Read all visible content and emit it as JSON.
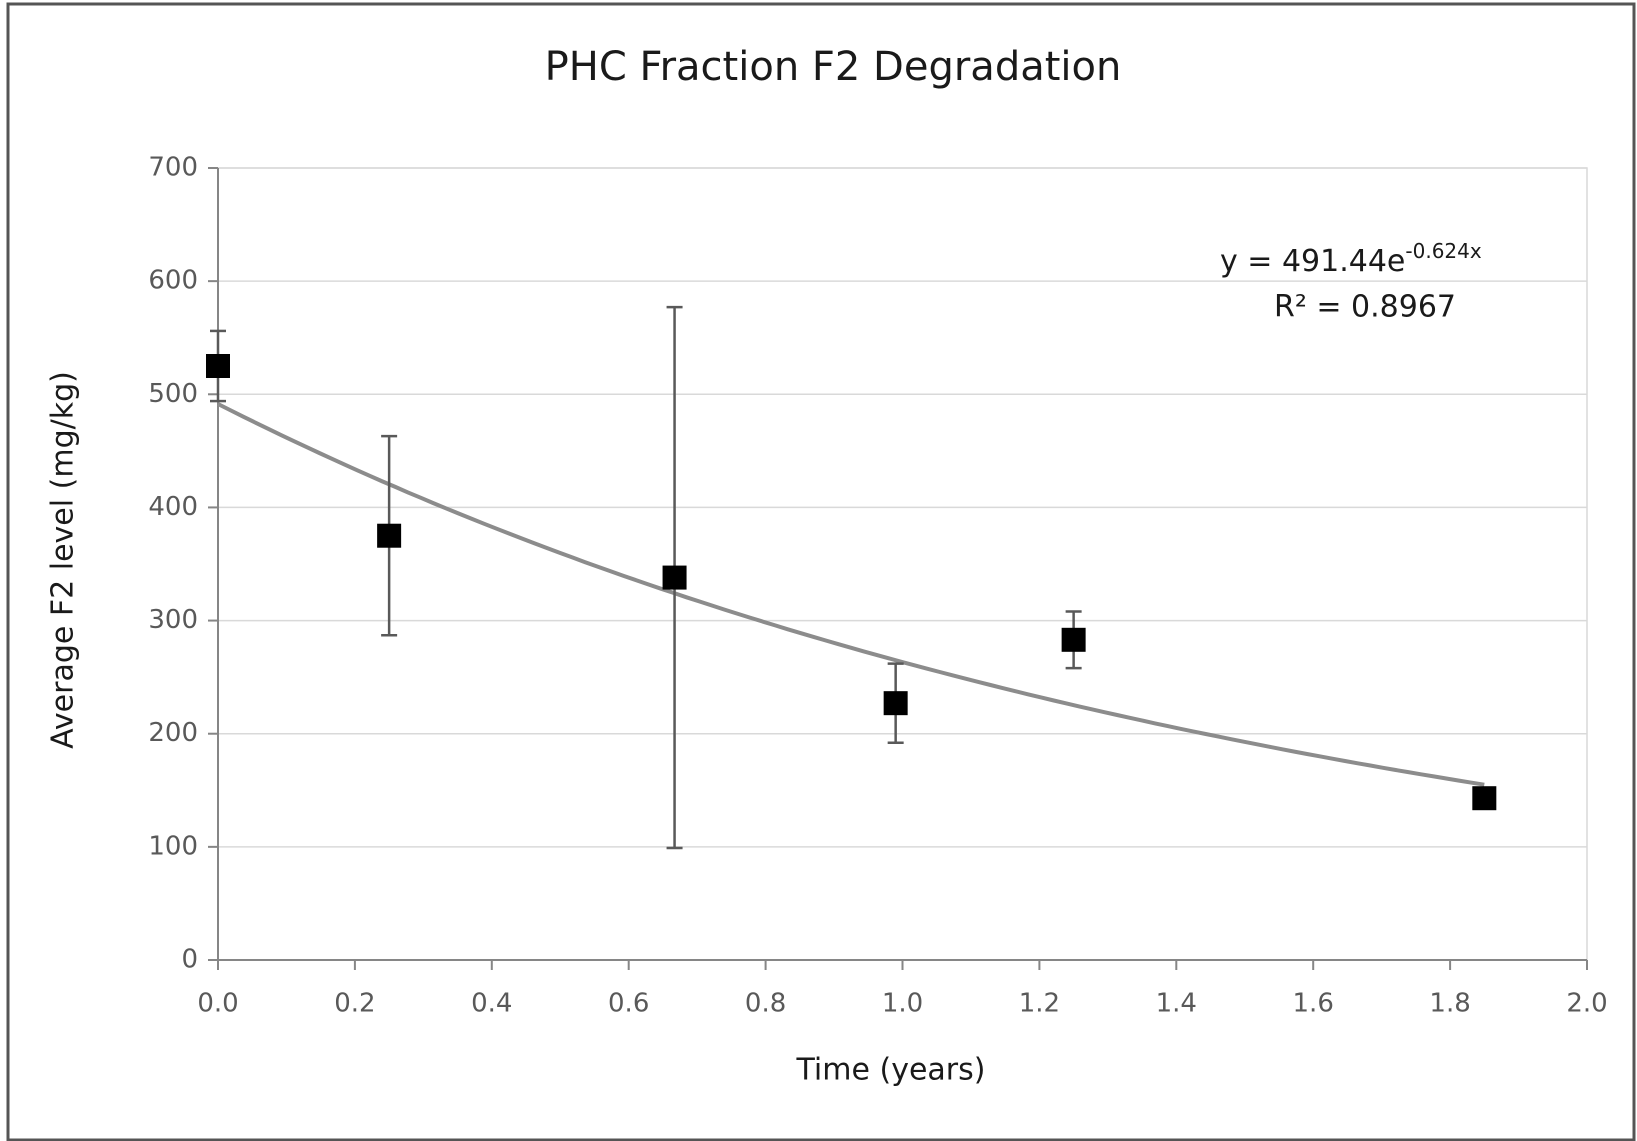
{
  "chart_data": {
    "type": "scatter",
    "title": "PHC Fraction F2 Degradation",
    "x_label": "Time (years)",
    "y_label": "Average F2 level (mg/kg)",
    "x": [
      0.0,
      0.25,
      0.667,
      0.99,
      1.25,
      1.85
    ],
    "values": [
      525,
      375,
      338,
      227,
      283,
      143
    ],
    "errors": [
      31,
      88,
      239,
      35,
      25,
      null
    ],
    "color": "#000000",
    "error_color": "#595959",
    "trendline": {
      "a": 491.44,
      "k": -0.624,
      "color": "#8c8c8c"
    },
    "equation": "y = 491.44e",
    "equation_exponent": "-0.624x",
    "r_squared": "R² = 0.8967",
    "xlim": [
      0,
      2
    ],
    "ylim": [
      0,
      700
    ],
    "xticks": [
      {
        "value": 0,
        "label": "0.0"
      },
      {
        "value": 0.2,
        "label": "0.2"
      },
      {
        "value": 0.4,
        "label": "0.4"
      },
      {
        "value": 0.6,
        "label": "0.6"
      },
      {
        "value": 0.8,
        "label": "0.8"
      },
      {
        "value": 1,
        "label": "1.0"
      },
      {
        "value": 1.2,
        "label": "1.2"
      },
      {
        "value": 1.4,
        "label": "1.4"
      },
      {
        "value": 1.6,
        "label": "1.6"
      },
      {
        "value": 1.8,
        "label": "1.8"
      },
      {
        "value": 2,
        "label": "2.0"
      }
    ],
    "yticks": [
      0,
      100,
      200,
      300,
      400,
      500,
      600,
      700
    ],
    "grid": true
  }
}
